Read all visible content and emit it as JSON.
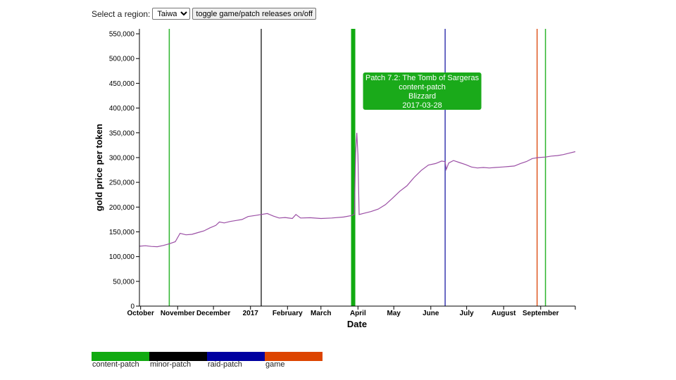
{
  "controls": {
    "region_label": "Select a region:",
    "region_selected": "Taiwan",
    "toggle_label": "toggle game/patch releases on/off"
  },
  "chart_data": {
    "type": "line",
    "xlabel": "Date",
    "ylabel": "gold price per token",
    "x_range": [
      "2016-09-30",
      "2017-09-30"
    ],
    "ylim": [
      0,
      560000
    ],
    "y_ticks": [
      0,
      50000,
      100000,
      150000,
      200000,
      250000,
      300000,
      350000,
      400000,
      450000,
      500000,
      550000
    ],
    "y_tick_labels": [
      "0",
      "50,000",
      "100,000",
      "150,000",
      "200,000",
      "250,000",
      "300,000",
      "350,000",
      "400,000",
      "450,000",
      "500,000",
      "550,000"
    ],
    "x_ticks": [
      "2016-10-01",
      "2016-11-01",
      "2016-12-01",
      "2017-01-01",
      "2017-02-01",
      "2017-03-01",
      "2017-04-01",
      "2017-05-01",
      "2017-06-01",
      "2017-07-01",
      "2017-08-01",
      "2017-09-01"
    ],
    "x_tick_labels": [
      "October",
      "November",
      "December",
      "2017",
      "February",
      "March",
      "April",
      "May",
      "June",
      "July",
      "August",
      "September"
    ],
    "series": [
      {
        "color": "#9b4fa5",
        "points": [
          [
            "2016-09-30",
            121000
          ],
          [
            "2016-10-05",
            122000
          ],
          [
            "2016-10-10",
            120500
          ],
          [
            "2016-10-15",
            120000
          ],
          [
            "2016-10-20",
            122500
          ],
          [
            "2016-10-25",
            126000
          ],
          [
            "2016-10-30",
            130000
          ],
          [
            "2016-11-03",
            147000
          ],
          [
            "2016-11-08",
            144000
          ],
          [
            "2016-11-13",
            145000
          ],
          [
            "2016-11-18",
            148500
          ],
          [
            "2016-11-23",
            152000
          ],
          [
            "2016-11-28",
            158000
          ],
          [
            "2016-12-03",
            163000
          ],
          [
            "2016-12-06",
            170000
          ],
          [
            "2016-12-10",
            168000
          ],
          [
            "2016-12-15",
            171000
          ],
          [
            "2016-12-20",
            173000
          ],
          [
            "2016-12-25",
            175000
          ],
          [
            "2016-12-30",
            181000
          ],
          [
            "2017-01-05",
            183000
          ],
          [
            "2017-01-10",
            185000
          ],
          [
            "2017-01-15",
            187000
          ],
          [
            "2017-01-20",
            182000
          ],
          [
            "2017-01-25",
            178000
          ],
          [
            "2017-01-30",
            179000
          ],
          [
            "2017-02-05",
            177000
          ],
          [
            "2017-02-08",
            185000
          ],
          [
            "2017-02-12",
            178000
          ],
          [
            "2017-02-20",
            178500
          ],
          [
            "2017-03-01",
            177000
          ],
          [
            "2017-03-10",
            178000
          ],
          [
            "2017-03-20",
            180000
          ],
          [
            "2017-03-27",
            183000
          ],
          [
            "2017-03-28",
            185000
          ],
          [
            "2017-03-29",
            185000
          ],
          [
            "2017-03-30",
            310000
          ],
          [
            "2017-03-31",
            350000
          ],
          [
            "2017-04-01",
            305000
          ],
          [
            "2017-04-02",
            185000
          ],
          [
            "2017-04-07",
            188000
          ],
          [
            "2017-04-12",
            191000
          ],
          [
            "2017-04-18",
            196000
          ],
          [
            "2017-04-24",
            205000
          ],
          [
            "2017-04-30",
            218000
          ],
          [
            "2017-05-06",
            232000
          ],
          [
            "2017-05-12",
            243000
          ],
          [
            "2017-05-18",
            260000
          ],
          [
            "2017-05-24",
            274000
          ],
          [
            "2017-05-30",
            285000
          ],
          [
            "2017-06-05",
            288000
          ],
          [
            "2017-06-10",
            293000
          ],
          [
            "2017-06-13",
            292000
          ],
          [
            "2017-06-14",
            276000
          ],
          [
            "2017-06-16",
            289000
          ],
          [
            "2017-06-20",
            294000
          ],
          [
            "2017-06-25",
            290000
          ],
          [
            "2017-06-30",
            286000
          ],
          [
            "2017-07-05",
            281000
          ],
          [
            "2017-07-10",
            279000
          ],
          [
            "2017-07-15",
            280000
          ],
          [
            "2017-07-20",
            279000
          ],
          [
            "2017-07-25",
            280000
          ],
          [
            "2017-07-31",
            281000
          ],
          [
            "2017-08-05",
            282000
          ],
          [
            "2017-08-10",
            283000
          ],
          [
            "2017-08-15",
            288000
          ],
          [
            "2017-08-20",
            292000
          ],
          [
            "2017-08-25",
            298000
          ],
          [
            "2017-08-30",
            300000
          ],
          [
            "2017-09-05",
            301000
          ],
          [
            "2017-09-10",
            303000
          ],
          [
            "2017-09-15",
            304000
          ],
          [
            "2017-09-20",
            306000
          ],
          [
            "2017-09-25",
            309000
          ],
          [
            "2017-09-30",
            312000
          ]
        ]
      }
    ],
    "events": [
      {
        "date": "2016-10-25",
        "category": "content-patch",
        "color": "#2db52d"
      },
      {
        "date": "2017-01-10",
        "category": "minor-patch",
        "color": "#333333"
      },
      {
        "date": "2017-03-28",
        "category": "content-patch",
        "color": "#11aa11",
        "highlighted": true
      },
      {
        "date": "2017-06-13",
        "category": "raid-patch",
        "color": "#3b3bb0"
      },
      {
        "date": "2017-08-29",
        "category": "game",
        "color": "#e05a25"
      },
      {
        "date": "2017-09-05",
        "category": "content-patch",
        "color": "#2db52d"
      }
    ],
    "tooltip": {
      "lines": [
        "Patch 7.2: The Tomb of Sargeras",
        "content-patch",
        "Blizzard",
        "2017-03-28"
      ],
      "color": "#1aaa1a"
    },
    "legend": [
      {
        "label": "content-patch",
        "color": "#11aa11"
      },
      {
        "label": "minor-patch",
        "color": "#000000"
      },
      {
        "label": "raid-patch",
        "color": "#0000a0"
      },
      {
        "label": "game",
        "color": "#dd4400"
      }
    ]
  }
}
